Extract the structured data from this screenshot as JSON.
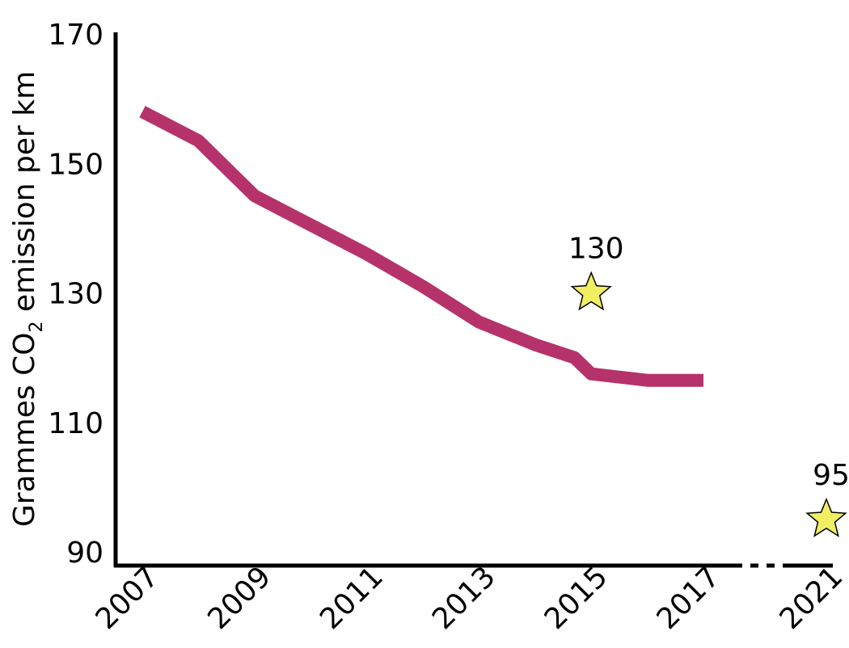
{
  "chart_data": {
    "type": "line",
    "title": "",
    "xlabel": "",
    "ylabel": "Grammes CO",
    "ylabel_subscript": "2",
    "ylabel_suffix": " emission per km",
    "ylim": [
      90,
      170
    ],
    "yticks": [
      "90",
      "110",
      "130",
      "150",
      "170"
    ],
    "xticks": [
      "2007",
      "2009",
      "2011",
      "2013",
      "2015",
      "2017",
      "2021"
    ],
    "series": [
      {
        "x": [
          2007,
          2008,
          2009,
          2010,
          2011,
          2012,
          2013,
          2014,
          2014.7,
          2015,
          2016,
          2017
        ],
        "y": [
          158,
          153.5,
          145,
          140.5,
          136,
          131,
          125.5,
          122,
          120,
          117.5,
          116.5,
          116.5
        ],
        "color": "#B5336A"
      }
    ],
    "targets": [
      {
        "x": 2015,
        "y": 130,
        "label": "130",
        "color": "#F2EE62"
      },
      {
        "x": 2021,
        "y": 95,
        "label": "95",
        "color": "#F2EE62"
      }
    ],
    "grid": false,
    "axis_break_between": [
      "2017",
      "2021"
    ]
  }
}
